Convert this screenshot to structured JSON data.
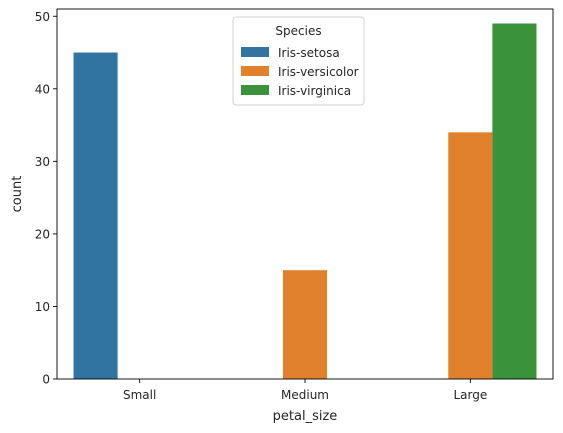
{
  "chart_data": {
    "type": "bar",
    "title": "",
    "xlabel": "petal_size",
    "ylabel": "count",
    "categories": [
      "Small",
      "Medium",
      "Large"
    ],
    "ylim": [
      0,
      51
    ],
    "yticks": [
      0,
      10,
      20,
      30,
      40,
      50
    ],
    "grid": false,
    "legend": {
      "title": "Species",
      "placement": "top-center"
    },
    "series": [
      {
        "name": "Iris-setosa",
        "color": "#3274a1",
        "values": [
          45,
          0,
          0
        ]
      },
      {
        "name": "Iris-versicolor",
        "color": "#e1812c",
        "values": [
          0,
          15,
          34
        ]
      },
      {
        "name": "Iris-virginica",
        "color": "#3a923a",
        "values": [
          0,
          0,
          49
        ]
      }
    ]
  }
}
